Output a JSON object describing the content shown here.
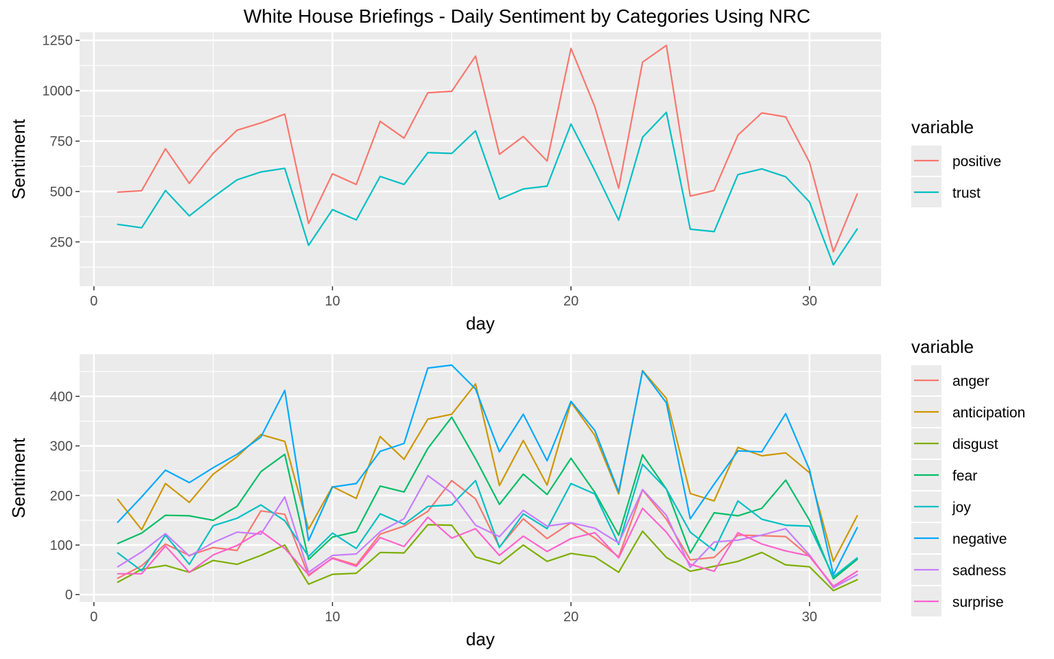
{
  "title": "White House Briefings - Daily Sentiment by Categories Using NRC",
  "colors": {
    "panel_bg": "#EBEBEB",
    "grid": "#FFFFFF",
    "tick_text": "#4D4D4D",
    "tick_mark": "#333333"
  },
  "chart_data": [
    {
      "type": "line",
      "xlabel": "day",
      "ylabel": "Sentiment",
      "xlim": [
        -0.6,
        33.0
      ],
      "ylim": [
        30,
        1290
      ],
      "x_ticks": [
        0,
        10,
        20,
        30
      ],
      "y_ticks": [
        250,
        500,
        750,
        1000,
        1250
      ],
      "grid": true,
      "legend": {
        "title": "variable",
        "position": "right"
      },
      "x": [
        1,
        2,
        3,
        4,
        5,
        6,
        7,
        8,
        9,
        10,
        11,
        12,
        13,
        14,
        15,
        16,
        17,
        18,
        19,
        20,
        21,
        22,
        23,
        24,
        25,
        26,
        27,
        28,
        29,
        30,
        31,
        32
      ],
      "series": [
        {
          "name": "positive",
          "color": "#F8766D",
          "values": [
            497,
            504,
            712,
            540,
            690,
            804,
            840,
            884,
            341,
            588,
            535,
            848,
            765,
            990,
            997,
            1172,
            685,
            773,
            651,
            1210,
            920,
            516,
            1142,
            1225,
            477,
            505,
            780,
            890,
            870,
            645,
            201,
            488
          ]
        },
        {
          "name": "trust",
          "color": "#00BFC4",
          "values": [
            337,
            320,
            505,
            379,
            472,
            558,
            597,
            615,
            233,
            410,
            359,
            575,
            535,
            693,
            689,
            801,
            462,
            513,
            527,
            835,
            603,
            358,
            769,
            893,
            313,
            301,
            584,
            612,
            573,
            448,
            136,
            314
          ]
        }
      ]
    },
    {
      "type": "line",
      "xlabel": "day",
      "ylabel": "Sentiment",
      "xlim": [
        -0.6,
        33.0
      ],
      "ylim": [
        -15,
        485
      ],
      "x_ticks": [
        0,
        10,
        20,
        30
      ],
      "y_ticks": [
        0,
        100,
        200,
        300,
        400
      ],
      "grid": true,
      "legend": {
        "title": "variable",
        "position": "right"
      },
      "x": [
        1,
        2,
        3,
        4,
        5,
        6,
        7,
        8,
        9,
        10,
        11,
        12,
        13,
        14,
        15,
        16,
        17,
        18,
        19,
        20,
        21,
        22,
        23,
        24,
        25,
        26,
        27,
        28,
        29,
        30,
        31,
        32
      ],
      "series": [
        {
          "name": "anger",
          "color": "#F8766D",
          "values": [
            33,
            58,
            102,
            79,
            95,
            89,
            169,
            162,
            38,
            74,
            60,
            122,
            138,
            168,
            230,
            193,
            96,
            153,
            113,
            145,
            114,
            76,
            211,
            152,
            70,
            75,
            120,
            119,
            117,
            77,
            16,
            47
          ]
        },
        {
          "name": "anticipation",
          "color": "#CD9600",
          "values": [
            192,
            131,
            224,
            186,
            243,
            278,
            323,
            309,
            132,
            218,
            194,
            319,
            273,
            354,
            364,
            425,
            220,
            311,
            221,
            388,
            321,
            203,
            452,
            396,
            204,
            189,
            297,
            280,
            286,
            246,
            67,
            159
          ]
        },
        {
          "name": "disgust",
          "color": "#7CAE00",
          "values": [
            25,
            51,
            59,
            45,
            69,
            61,
            79,
            100,
            21,
            41,
            43,
            85,
            84,
            141,
            140,
            76,
            62,
            100,
            67,
            83,
            76,
            45,
            128,
            75,
            47,
            57,
            67,
            85,
            60,
            56,
            8,
            30
          ]
        },
        {
          "name": "fear",
          "color": "#00BE67",
          "values": [
            103,
            124,
            160,
            159,
            150,
            178,
            248,
            283,
            71,
            116,
            127,
            219,
            207,
            295,
            358,
            274,
            182,
            243,
            202,
            275,
            206,
            120,
            282,
            213,
            84,
            165,
            159,
            174,
            231,
            150,
            32,
            71
          ]
        },
        {
          "name": "joy",
          "color": "#00BFC4",
          "values": [
            84,
            48,
            120,
            61,
            139,
            154,
            181,
            149,
            77,
            124,
            93,
            163,
            142,
            178,
            181,
            230,
            95,
            163,
            133,
            224,
            203,
            101,
            263,
            213,
            126,
            89,
            189,
            152,
            140,
            138,
            36,
            74
          ]
        },
        {
          "name": "negative",
          "color": "#00A9FF",
          "values": [
            146,
            197,
            251,
            226,
            256,
            283,
            318,
            412,
            109,
            217,
            224,
            289,
            305,
            457,
            463,
            415,
            288,
            364,
            270,
            390,
            331,
            207,
            451,
            387,
            153,
            223,
            290,
            288,
            365,
            252,
            40,
            135
          ]
        },
        {
          "name": "sadness",
          "color": "#C77CFF",
          "values": [
            56,
            86,
            123,
            78,
            105,
            126,
            122,
            197,
            45,
            79,
            82,
            127,
            153,
            240,
            205,
            140,
            117,
            170,
            138,
            145,
            134,
            104,
            212,
            160,
            55,
            106,
            110,
            120,
            133,
            80,
            14,
            40
          ]
        },
        {
          "name": "surprise",
          "color": "#FF61CC",
          "values": [
            42,
            42,
            98,
            45,
            80,
            99,
            128,
            93,
            40,
            73,
            57,
            115,
            97,
            156,
            114,
            133,
            79,
            118,
            87,
            113,
            125,
            74,
            174,
            126,
            61,
            47,
            125,
            102,
            88,
            78,
            17,
            47
          ]
        }
      ]
    }
  ]
}
